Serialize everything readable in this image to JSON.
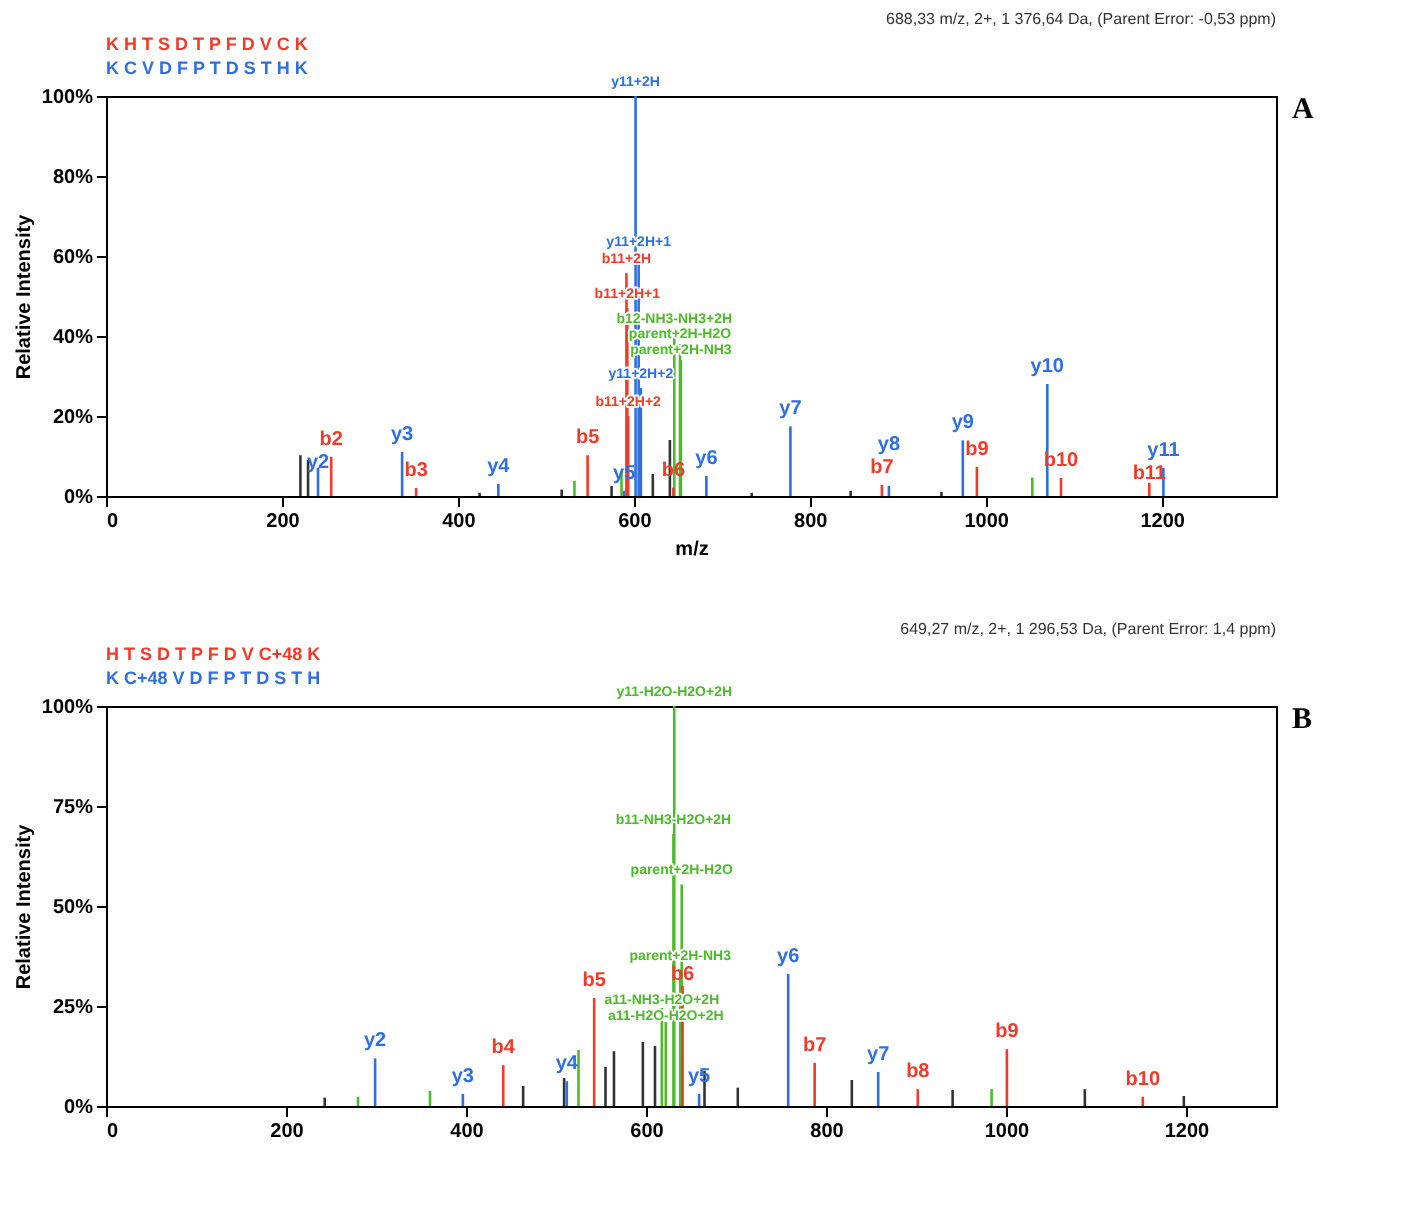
{
  "chart_data": [
    {
      "type": "bar",
      "xlabel": "m/z",
      "ylabel": "Relative Intensity",
      "xlim": [
        0,
        1330
      ],
      "xticks": [
        0,
        200,
        400,
        600,
        800,
        1000,
        1200
      ],
      "ylim": [
        0,
        100
      ],
      "yticks": [
        {
          "value": 0,
          "label": "0%"
        },
        {
          "value": 20,
          "label": "20%"
        },
        {
          "value": 40,
          "label": "40%"
        },
        {
          "value": 60,
          "label": "60%"
        },
        {
          "value": 80,
          "label": "80%"
        },
        {
          "value": 100,
          "label": "100%"
        }
      ],
      "grid": false,
      "legend": false,
      "annotations": [
        "688,33 m/z, 2+, 1 376,64 Da, (Parent Error: -0,53 ppm)",
        "K  H  T  S  D  T  P  F  D  V  C  K",
        "K  C  V  D  F  P  T  D  S  T  H  K",
        "A"
      ],
      "series": [
        {
          "color": "#333333",
          "x": [
            221,
            229.7,
            424.7,
            518,
            574.7,
            621.6,
            641,
            734,
            846.5,
            949.7
          ],
          "values": [
            10.2,
            9,
            0.8,
            1.6,
            2.5,
            5.5,
            14,
            0.8,
            1.3,
            1
          ]
        },
        {
          "color": "#4cbb2a",
          "x": [
            532.5,
            586,
            646,
            652.5,
            653.5,
            1053
          ],
          "values": [
            3.8,
            6,
            40.8,
            38,
            34,
            4.6
          ],
          "value_labels": [
            null,
            null,
            "b12-NH3-NH3+2H",
            "parent+2H-H2O",
            "parent+2H-NH3",
            null
          ]
        },
        {
          "color": "#f03a2a",
          "x": [
            256,
            352.5,
            547.5,
            591.6,
            592.6,
            593.6,
            645,
            882,
            990,
            1085.6,
            1186
          ],
          "values": [
            9.8,
            2,
            10.2,
            55.7,
            47,
            20,
            2.1,
            2.8,
            7.3,
            4.5,
            3.3
          ],
          "value_labels": [
            "b2",
            "b3",
            "b5",
            "b11+2H",
            "b11+2H+1",
            "b11+2H+2",
            "b6",
            "b7",
            "b9",
            "b10",
            "b11"
          ]
        },
        {
          "color": "#2f6fe0",
          "x": [
            241,
            336.6,
            446,
            589,
            602,
            605.5,
            608,
            682.5,
            778,
            890,
            974,
            1070,
            1202
          ],
          "values": [
            7.1,
            11,
            3,
            1.3,
            100,
            60,
            27,
            5,
            17.4,
            2.5,
            13.9,
            28,
            7
          ],
          "value_labels": [
            "y2",
            "y3",
            "y4",
            "y5",
            "y11+2H",
            "y11+2H+1",
            "y11+2H+2",
            "y6",
            "y7",
            "y8",
            "y9",
            "y10",
            "y11"
          ]
        }
      ]
    },
    {
      "type": "bar",
      "ylabel": "Relative Intensity",
      "xlim": [
        0,
        1300
      ],
      "xticks": [
        0,
        200,
        400,
        600,
        800,
        1000,
        1200
      ],
      "ylim": [
        0,
        100
      ],
      "yticks": [
        {
          "value": 0,
          "label": "0%"
        },
        {
          "value": 25,
          "label": "25%"
        },
        {
          "value": 50,
          "label": "50%"
        },
        {
          "value": 75,
          "label": "75%"
        },
        {
          "value": 100,
          "label": "100%"
        }
      ],
      "grid": false,
      "legend": false,
      "annotations": [
        "649,27 m/z, 2+, 1 296,53 Da, (Parent Error: 1,4 ppm)",
        "H  T  S  D  T  P  F  D  V  C+48  K",
        "K  C+48  V  D  F  P  T  D  S  T  H",
        "B"
      ],
      "series": [
        {
          "color": "#333333",
          "x": [
            243,
            463.5,
            509,
            555,
            564.4,
            596.5,
            610,
            665,
            702,
            828.7,
            940.7,
            1087.6,
            1197.6
          ],
          "values": [
            2.1,
            5,
            7,
            9.8,
            13.7,
            16,
            15,
            8.8,
            4.6,
            6.5,
            4,
            4.2,
            2.5
          ]
        },
        {
          "color": "#4cbb2a",
          "x": [
            280,
            360,
            525,
            617.6,
            622,
            630.5,
            631.4,
            638,
            639.7,
            984
          ],
          "values": [
            2.3,
            3.8,
            14,
            24.5,
            21,
            68,
            100,
            34,
            55.4,
            4.2
          ],
          "value_labels": [
            null,
            null,
            null,
            "a11-NH3-H2O+2H",
            "a11-H2O-H2O+2H",
            "b11-NH3-H2O+2H",
            "y11-H2O-H2O+2H",
            "parent+2H-NH3",
            "parent+2H-H2O",
            null
          ]
        },
        {
          "color": "#f03a2a",
          "x": [
            441.4,
            542.4,
            640.6,
            787.4,
            902,
            1001,
            1152
          ],
          "values": [
            10.2,
            27,
            30,
            10.8,
            4.2,
            14.2,
            2.3
          ],
          "value_labels": [
            "b4",
            "b5",
            "b6",
            "b7",
            "b8",
            "b9",
            "b10"
          ]
        },
        {
          "color": "#2f6fe0",
          "x": [
            299,
            396.5,
            512,
            659,
            758,
            858
          ],
          "values": [
            11.9,
            3,
            6.2,
            3,
            33,
            8.5
          ],
          "value_labels": [
            "y2",
            "y3",
            "y4",
            "y5",
            "y6",
            "y7"
          ]
        }
      ]
    }
  ]
}
